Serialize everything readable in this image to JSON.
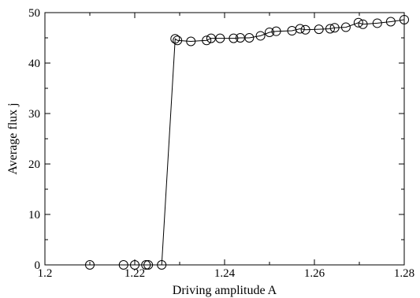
{
  "chart_data": {
    "type": "line",
    "title": "",
    "xlabel": "Driving amplitude A",
    "ylabel": "Average flux j",
    "xlim": [
      1.2,
      1.28
    ],
    "ylim": [
      0,
      50
    ],
    "xticks": [
      1.2,
      1.22,
      1.24,
      1.26,
      1.28
    ],
    "xtick_labels": [
      "1.2",
      "1.22",
      "1.24",
      "1.26",
      "1.28"
    ],
    "yticks": [
      0,
      10,
      20,
      30,
      40,
      50
    ],
    "ytick_labels": [
      "0",
      "10",
      "20",
      "30",
      "40",
      "50"
    ],
    "grid": false,
    "legend": "none",
    "marker": "open-circle",
    "line_color": "#000000",
    "series": [
      {
        "x": [
          1.21,
          1.2175,
          1.22,
          1.2225,
          1.223,
          1.226,
          1.229,
          1.2295,
          1.2325,
          1.236,
          1.237,
          1.239,
          1.242,
          1.2435,
          1.2455,
          1.248,
          1.25,
          1.2515,
          1.255,
          1.2568,
          1.258,
          1.261,
          1.2635,
          1.2645,
          1.267,
          1.2698,
          1.2708,
          1.274,
          1.277,
          1.28
        ],
        "y": [
          0,
          0,
          0,
          0,
          0,
          0,
          44.8,
          44.5,
          44.3,
          44.5,
          44.9,
          44.9,
          44.9,
          45.0,
          45.0,
          45.4,
          46.1,
          46.3,
          46.4,
          46.8,
          46.6,
          46.7,
          46.8,
          47.0,
          47.1,
          48.0,
          47.7,
          47.9,
          48.2,
          48.6
        ]
      }
    ]
  }
}
